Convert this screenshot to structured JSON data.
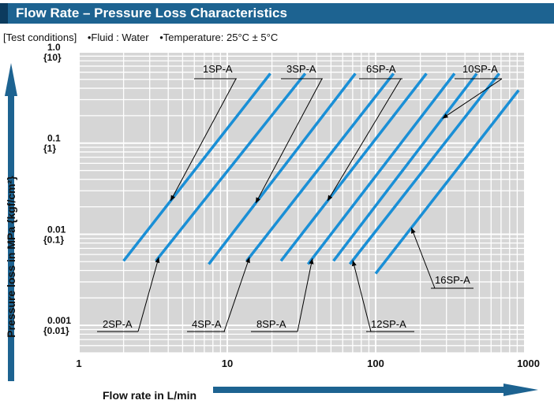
{
  "header": {
    "title": "Flow Rate – Pressure Loss Characteristics"
  },
  "test_conditions": {
    "label": "[Test conditions]",
    "fluid": "•Fluid : Water",
    "temperature": "•Temperature: 25°C ± 5°C"
  },
  "colors": {
    "title_bar": "#1d6391",
    "title_tab": "#0c3b5e",
    "plot_bg": "#d6d6d6",
    "gridlines": "#ffffff",
    "series": "#1a8fd6",
    "arrow": "#1d6391"
  },
  "chart_data": {
    "type": "line",
    "xlabel": "Flow rate in L/min",
    "ylabel": "Pressure loss in MPa {kgf/cm²}",
    "x_scale": "log",
    "y_scale": "log",
    "xlim": [
      1,
      1000
    ],
    "ylim": [
      0.0005,
      1.0
    ],
    "x_ticks": [
      {
        "value": 1,
        "label": "1"
      },
      {
        "value": 10,
        "label": "10"
      },
      {
        "value": 100,
        "label": "100"
      },
      {
        "value": 1000,
        "label": "1000"
      }
    ],
    "y_ticks": [
      {
        "value": 1.0,
        "label": "1.0",
        "sublabel": "{10}"
      },
      {
        "value": 0.1,
        "label": "0.1",
        "sublabel": "{1}"
      },
      {
        "value": 0.01,
        "label": "0.01",
        "sublabel": "{0.1}"
      },
      {
        "value": 0.001,
        "label": "0.001",
        "sublabel": "{0.01}"
      }
    ],
    "grid": true,
    "series": [
      {
        "name": "1SP-A",
        "x": [
          2.0,
          19.5
        ],
        "y": [
          0.0051,
          0.58
        ]
      },
      {
        "name": "2SP-A",
        "x": [
          3.3,
          33.5
        ],
        "y": [
          0.0051,
          0.58
        ]
      },
      {
        "name": "3SP-A",
        "x": [
          7.5,
          73
        ],
        "y": [
          0.0047,
          0.58
        ]
      },
      {
        "name": "4SP-A",
        "x": [
          13.5,
          132
        ],
        "y": [
          0.0051,
          0.58
        ]
      },
      {
        "name": "6SP-A",
        "x": [
          23,
          220
        ],
        "y": [
          0.0051,
          0.58
        ]
      },
      {
        "name": "8SP-A",
        "x": [
          35,
          340
        ],
        "y": [
          0.0047,
          0.58
        ]
      },
      {
        "name": "10SP-A",
        "x": [
          52,
          480
        ],
        "y": [
          0.0051,
          0.58
        ]
      },
      {
        "name": "12SP-A",
        "x": [
          67,
          680
        ],
        "y": [
          0.0047,
          0.58
        ]
      },
      {
        "name": "16SP-A",
        "x": [
          100,
          920
        ],
        "y": [
          0.0037,
          0.38
        ]
      }
    ]
  }
}
